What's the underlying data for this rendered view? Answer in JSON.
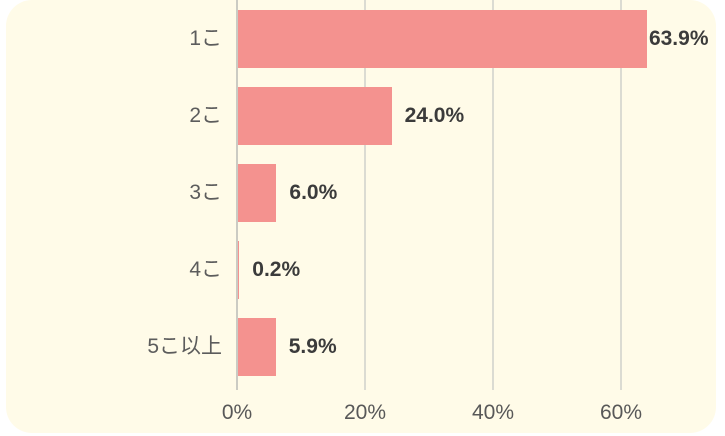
{
  "chart_data": {
    "type": "bar",
    "orientation": "horizontal",
    "title": "",
    "xlabel": "",
    "ylabel": "",
    "categories": [
      "1こ",
      "2こ",
      "3こ",
      "4こ",
      "5こ以上"
    ],
    "values": [
      63.9,
      24.0,
      6.0,
      0.2,
      5.9
    ],
    "value_labels": [
      "63.9%",
      "24.0%",
      "6.0%",
      "0.2%",
      "5.9%"
    ],
    "x_ticks": [
      {
        "value": 0,
        "label": "0%"
      },
      {
        "value": 20,
        "label": "20%"
      },
      {
        "value": 40,
        "label": "40%"
      },
      {
        "value": 60,
        "label": "60%"
      }
    ],
    "xlim": [
      0,
      75
    ],
    "grid": true,
    "legend": false
  },
  "colors": {
    "page_background": "#ffffff",
    "card_background": "#fffbe8",
    "bar": "#f4928f",
    "gridline": "#dbdbd2",
    "axis_line": "#cbcbc3",
    "category_label": "#5c5c5c",
    "value_label": "#3b3b3b",
    "tick_label": "#585858"
  }
}
